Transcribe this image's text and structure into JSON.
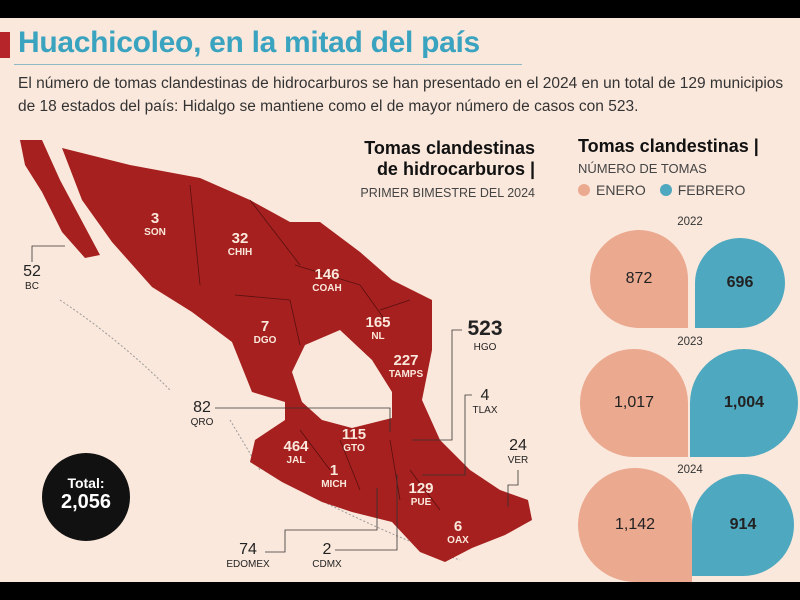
{
  "title": "Huachicoleo, en la mitad del país",
  "intro": "El número de tomas clandestinas de hidrocarburos se han presentado en el 2024 en un total de 129 municipios de 18 estados del país: Hidalgo se mantiene como el de mayor número de casos con 523.",
  "map": {
    "heading_line1": "Tomas clandestinas",
    "heading_line2": "de hidrocarburos |",
    "subheading": "PRIMER BIMESTRE DEL 2024",
    "states": [
      {
        "value": "3",
        "abbr": "SON"
      },
      {
        "value": "32",
        "abbr": "CHIH"
      },
      {
        "value": "146",
        "abbr": "COAH"
      },
      {
        "value": "165",
        "abbr": "NL"
      },
      {
        "value": "7",
        "abbr": "DGO"
      },
      {
        "value": "227",
        "abbr": "TAMPS"
      },
      {
        "value": "464",
        "abbr": "JAL"
      },
      {
        "value": "115",
        "abbr": "GTO"
      },
      {
        "value": "1",
        "abbr": "MICH"
      },
      {
        "value": "129",
        "abbr": "PUE"
      },
      {
        "value": "6",
        "abbr": "OAX"
      },
      {
        "value": "52",
        "abbr": "BC"
      },
      {
        "value": "523",
        "abbr": "HGO"
      },
      {
        "value": "82",
        "abbr": "QRO"
      },
      {
        "value": "4",
        "abbr": "TLAX"
      },
      {
        "value": "24",
        "abbr": "VER"
      },
      {
        "value": "74",
        "abbr": "EDOMEX"
      },
      {
        "value": "2",
        "abbr": "CDMX"
      }
    ],
    "total_label": "Total:",
    "total_value": "2,056",
    "colors": {
      "state": "#a5201e",
      "background": "#fbe8dc"
    }
  },
  "comparison": {
    "heading": "Tomas clandestinas |",
    "subheading": "NÚMERO DE TOMAS",
    "legend": [
      {
        "label": "ENERO",
        "color": "#eba98f"
      },
      {
        "label": "FEBRERO",
        "color": "#4ea8bf"
      }
    ],
    "years": [
      {
        "year": "2022",
        "enero": "872",
        "febrero": "696"
      },
      {
        "year": "2023",
        "enero": "1,017",
        "febrero": "1,004"
      },
      {
        "year": "2024",
        "enero": "1,142",
        "febrero": "914"
      }
    ]
  }
}
